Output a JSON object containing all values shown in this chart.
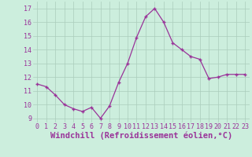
{
  "x": [
    0,
    1,
    2,
    3,
    4,
    5,
    6,
    7,
    8,
    9,
    10,
    11,
    12,
    13,
    14,
    15,
    16,
    17,
    18,
    19,
    20,
    21,
    22,
    23
  ],
  "y": [
    11.5,
    11.3,
    10.7,
    10.0,
    9.7,
    9.5,
    9.8,
    9.0,
    9.9,
    11.6,
    13.0,
    14.9,
    16.4,
    17.0,
    16.0,
    14.5,
    14.0,
    13.5,
    13.3,
    11.9,
    12.0,
    12.2,
    12.2,
    12.2
  ],
  "line_color": "#993399",
  "marker": "+",
  "xlabel": "Windchill (Refroidissement éolien,°C)",
  "xlim": [
    -0.5,
    23.5
  ],
  "ylim": [
    8.7,
    17.5
  ],
  "yticks": [
    9,
    10,
    11,
    12,
    13,
    14,
    15,
    16,
    17
  ],
  "xticks": [
    0,
    1,
    2,
    3,
    4,
    5,
    6,
    7,
    8,
    9,
    10,
    11,
    12,
    13,
    14,
    15,
    16,
    17,
    18,
    19,
    20,
    21,
    22,
    23
  ],
  "bg_color": "#cceedd",
  "grid_color": "#aaccbb",
  "tick_label_color": "#993399",
  "xlabel_color": "#993399",
  "tick_fontsize": 6,
  "xlabel_fontsize": 7.5
}
